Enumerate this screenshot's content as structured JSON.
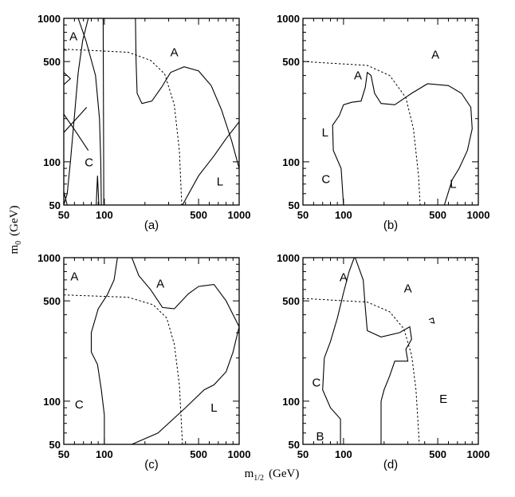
{
  "chart_data": {
    "type": "line",
    "xlabel": "m",
    "xlabel_sub": "1/2",
    "xlabel_unit": "(GeV)",
    "ylabel": "m",
    "ylabel_sub": "0",
    "ylabel_unit": "(GeV)",
    "x_scale": "log",
    "y_scale": "log",
    "xlim": [
      50,
      1000
    ],
    "ylim": [
      50,
      1000
    ],
    "x_ticks": [
      {
        "value": 50,
        "label": "50"
      },
      {
        "value": 100,
        "label": "100"
      },
      {
        "value": 500,
        "label": "500"
      },
      {
        "value": 1000,
        "label": "1000"
      }
    ],
    "y_ticks": [
      {
        "value": 50,
        "label": "50"
      },
      {
        "value": 100,
        "label": "100"
      },
      {
        "value": 500,
        "label": "500"
      },
      {
        "value": 1000,
        "label": "1000"
      }
    ],
    "grid": false,
    "panels": [
      {
        "label": "(a)",
        "region_labels": [
          {
            "text": "A",
            "x": 59,
            "y": 750
          },
          {
            "text": "A",
            "x": 330,
            "y": 580
          },
          {
            "text": "C",
            "x": 77,
            "y": 99
          },
          {
            "text": "L",
            "x": 720,
            "y": 73
          }
        ],
        "solid_curves": [
          [
            [
              76,
              1000
            ],
            [
              69,
              700
            ],
            [
              64,
              420
            ],
            [
              60,
              210
            ],
            [
              56,
              100
            ],
            [
              53,
              60
            ],
            [
              50,
              50
            ]
          ],
          [
            [
              64,
              1000
            ],
            [
              73,
              700
            ],
            [
              86,
              400
            ],
            [
              92,
              200
            ],
            [
              94,
              100
            ],
            [
              95,
              50
            ]
          ],
          [
            [
              98,
              1000
            ],
            [
              99,
              50
            ]
          ],
          [
            [
              50,
              420
            ],
            [
              56,
              380
            ],
            [
              50,
              345
            ]
          ],
          [
            [
              50,
              215
            ],
            [
              62,
              160
            ],
            [
              76,
              120
            ]
          ],
          [
            [
              50,
              160
            ],
            [
              62,
              200
            ],
            [
              74,
              240
            ]
          ],
          [
            [
              50,
              62
            ],
            [
              53,
              50
            ]
          ],
          [
            [
              87,
              50
            ],
            [
              89,
              80
            ],
            [
              91,
              50
            ]
          ],
          [
            [
              170,
              1000
            ],
            [
              172,
              500
            ],
            [
              175,
              300
            ],
            [
              190,
              255
            ],
            [
              225,
              265
            ],
            [
              265,
              330
            ],
            [
              310,
              420
            ],
            [
              390,
              460
            ],
            [
              500,
              430
            ],
            [
              620,
              340
            ],
            [
              740,
              230
            ],
            [
              880,
              140
            ],
            [
              1000,
              90
            ]
          ],
          [
            [
              380,
              50
            ],
            [
              500,
              80
            ],
            [
              650,
              110
            ],
            [
              800,
              145
            ],
            [
              1000,
              190
            ]
          ]
        ],
        "dashed_curve": [
          [
            50,
            610
          ],
          [
            150,
            580
          ],
          [
            220,
            510
          ],
          [
            280,
            410
          ],
          [
            330,
            250
          ],
          [
            360,
            120
          ],
          [
            375,
            50
          ]
        ]
      },
      {
        "label": "(b)",
        "region_labels": [
          {
            "text": "A",
            "x": 480,
            "y": 560
          },
          {
            "text": "A",
            "x": 128,
            "y": 400
          },
          {
            "text": "L",
            "x": 73,
            "y": 160
          },
          {
            "text": "C",
            "x": 74,
            "y": 76
          },
          {
            "text": "L",
            "x": 650,
            "y": 70
          }
        ],
        "solid_curves": [
          [
            [
              100,
              50
            ],
            [
              96,
              90
            ],
            [
              84,
              120
            ],
            [
              83,
              180
            ],
            [
              93,
              210
            ],
            [
              100,
              250
            ],
            [
              115,
              260
            ],
            [
              135,
              265
            ],
            [
              145,
              330
            ],
            [
              150,
              420
            ],
            [
              160,
              400
            ],
            [
              170,
              300
            ],
            [
              190,
              255
            ],
            [
              240,
              250
            ],
            [
              320,
              300
            ],
            [
              420,
              350
            ],
            [
              600,
              340
            ],
            [
              750,
              300
            ],
            [
              880,
              240
            ],
            [
              900,
              170
            ],
            [
              830,
              120
            ],
            [
              720,
              90
            ],
            [
              640,
              75
            ],
            [
              560,
              50
            ]
          ]
        ],
        "dashed_curve": [
          [
            50,
            500
          ],
          [
            150,
            470
          ],
          [
            220,
            400
          ],
          [
            290,
            280
          ],
          [
            330,
            170
          ],
          [
            360,
            80
          ],
          [
            370,
            50
          ]
        ]
      },
      {
        "label": "(c)",
        "region_labels": [
          {
            "text": "A",
            "x": 60,
            "y": 740
          },
          {
            "text": "A",
            "x": 260,
            "y": 660
          },
          {
            "text": "C",
            "x": 65,
            "y": 95
          },
          {
            "text": "L",
            "x": 650,
            "y": 90
          }
        ],
        "solid_curves": [
          [
            [
              125,
              1000
            ],
            [
              118,
              700
            ],
            [
              105,
              550
            ],
            [
              90,
              440
            ],
            [
              80,
              300
            ],
            [
              80,
              220
            ],
            [
              89,
              180
            ],
            [
              95,
              120
            ],
            [
              100,
              80
            ],
            [
              100,
              50
            ]
          ],
          [
            [
              160,
              1000
            ],
            [
              180,
              750
            ],
            [
              220,
              600
            ],
            [
              270,
              450
            ],
            [
              330,
              440
            ],
            [
              420,
              560
            ],
            [
              500,
              630
            ],
            [
              650,
              650
            ],
            [
              800,
              500
            ],
            [
              1000,
              330
            ],
            [
              900,
              220
            ],
            [
              800,
              160
            ],
            [
              650,
              130
            ],
            [
              550,
              120
            ],
            [
              400,
              90
            ],
            [
              250,
              60
            ],
            [
              160,
              50
            ]
          ]
        ],
        "dashed_curve": [
          [
            50,
            550
          ],
          [
            150,
            530
          ],
          [
            230,
            470
          ],
          [
            290,
            380
          ],
          [
            330,
            250
          ],
          [
            360,
            130
          ],
          [
            380,
            50
          ]
        ]
      },
      {
        "label": "(d)",
        "region_labels": [
          {
            "text": "A",
            "x": 100,
            "y": 730
          },
          {
            "text": "A",
            "x": 300,
            "y": 610
          },
          {
            "text": "C",
            "x": 63,
            "y": 135
          },
          {
            "text": "E",
            "x": 550,
            "y": 104
          },
          {
            "text": "B",
            "x": 67,
            "y": 57
          }
        ],
        "solid_curves": [
          [
            [
              120,
              1000
            ],
            [
              110,
              800
            ],
            [
              100,
              570
            ],
            [
              90,
              380
            ],
            [
              80,
              260
            ],
            [
              72,
              200
            ],
            [
              70,
              120
            ],
            [
              80,
              90
            ],
            [
              95,
              75
            ],
            [
              95,
              50
            ]
          ],
          [
            [
              122,
              1000
            ],
            [
              140,
              700
            ],
            [
              145,
              450
            ],
            [
              150,
              310
            ],
            [
              190,
              280
            ],
            [
              260,
              300
            ],
            [
              310,
              330
            ],
            [
              320,
              270
            ],
            [
              290,
              230
            ],
            [
              300,
              190
            ],
            [
              240,
              190
            ],
            [
              220,
              150
            ],
            [
              200,
              120
            ],
            [
              190,
              100
            ],
            [
              190,
              50
            ]
          ],
          [
            [
              430,
              370
            ],
            [
              460,
              380
            ],
            [
              470,
              350
            ],
            [
              440,
              355
            ]
          ]
        ],
        "dashed_curve": [
          [
            50,
            520
          ],
          [
            150,
            490
          ],
          [
            220,
            420
          ],
          [
            280,
            320
          ],
          [
            320,
            210
          ],
          [
            345,
            120
          ],
          [
            365,
            50
          ]
        ]
      }
    ]
  }
}
